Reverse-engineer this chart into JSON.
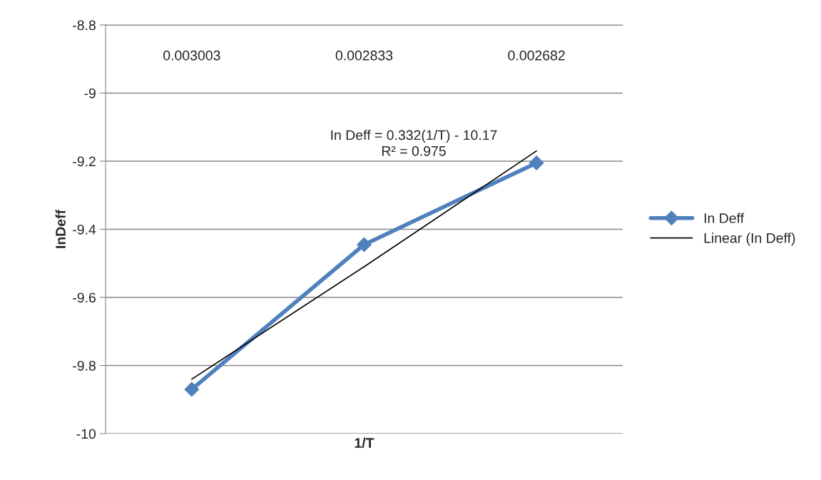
{
  "chart_data": {
    "type": "line",
    "xlabel": "1/T",
    "ylabel": "InDeff",
    "categories": [
      "0.003003",
      "0.002833",
      "0.002682"
    ],
    "series": [
      {
        "name": "In Deff",
        "color": "#4f81bd",
        "values": [
          -9.87,
          -9.445,
          -9.205
        ],
        "marker": "diamond"
      },
      {
        "name": "Linear (In Deff)",
        "color": "#000000",
        "values": [
          -9.84,
          -9.51,
          -9.17
        ],
        "marker": "none"
      }
    ],
    "ylim": [
      -10,
      -8.8
    ],
    "yticks": [
      -10,
      -9.8,
      -9.6,
      -9.4,
      -9.2,
      -9,
      -8.8
    ],
    "annotations": [
      "In Deff = 0.332(1/T) - 10.17\nR² = 0.975"
    ],
    "grid": "y",
    "legend": "right"
  }
}
